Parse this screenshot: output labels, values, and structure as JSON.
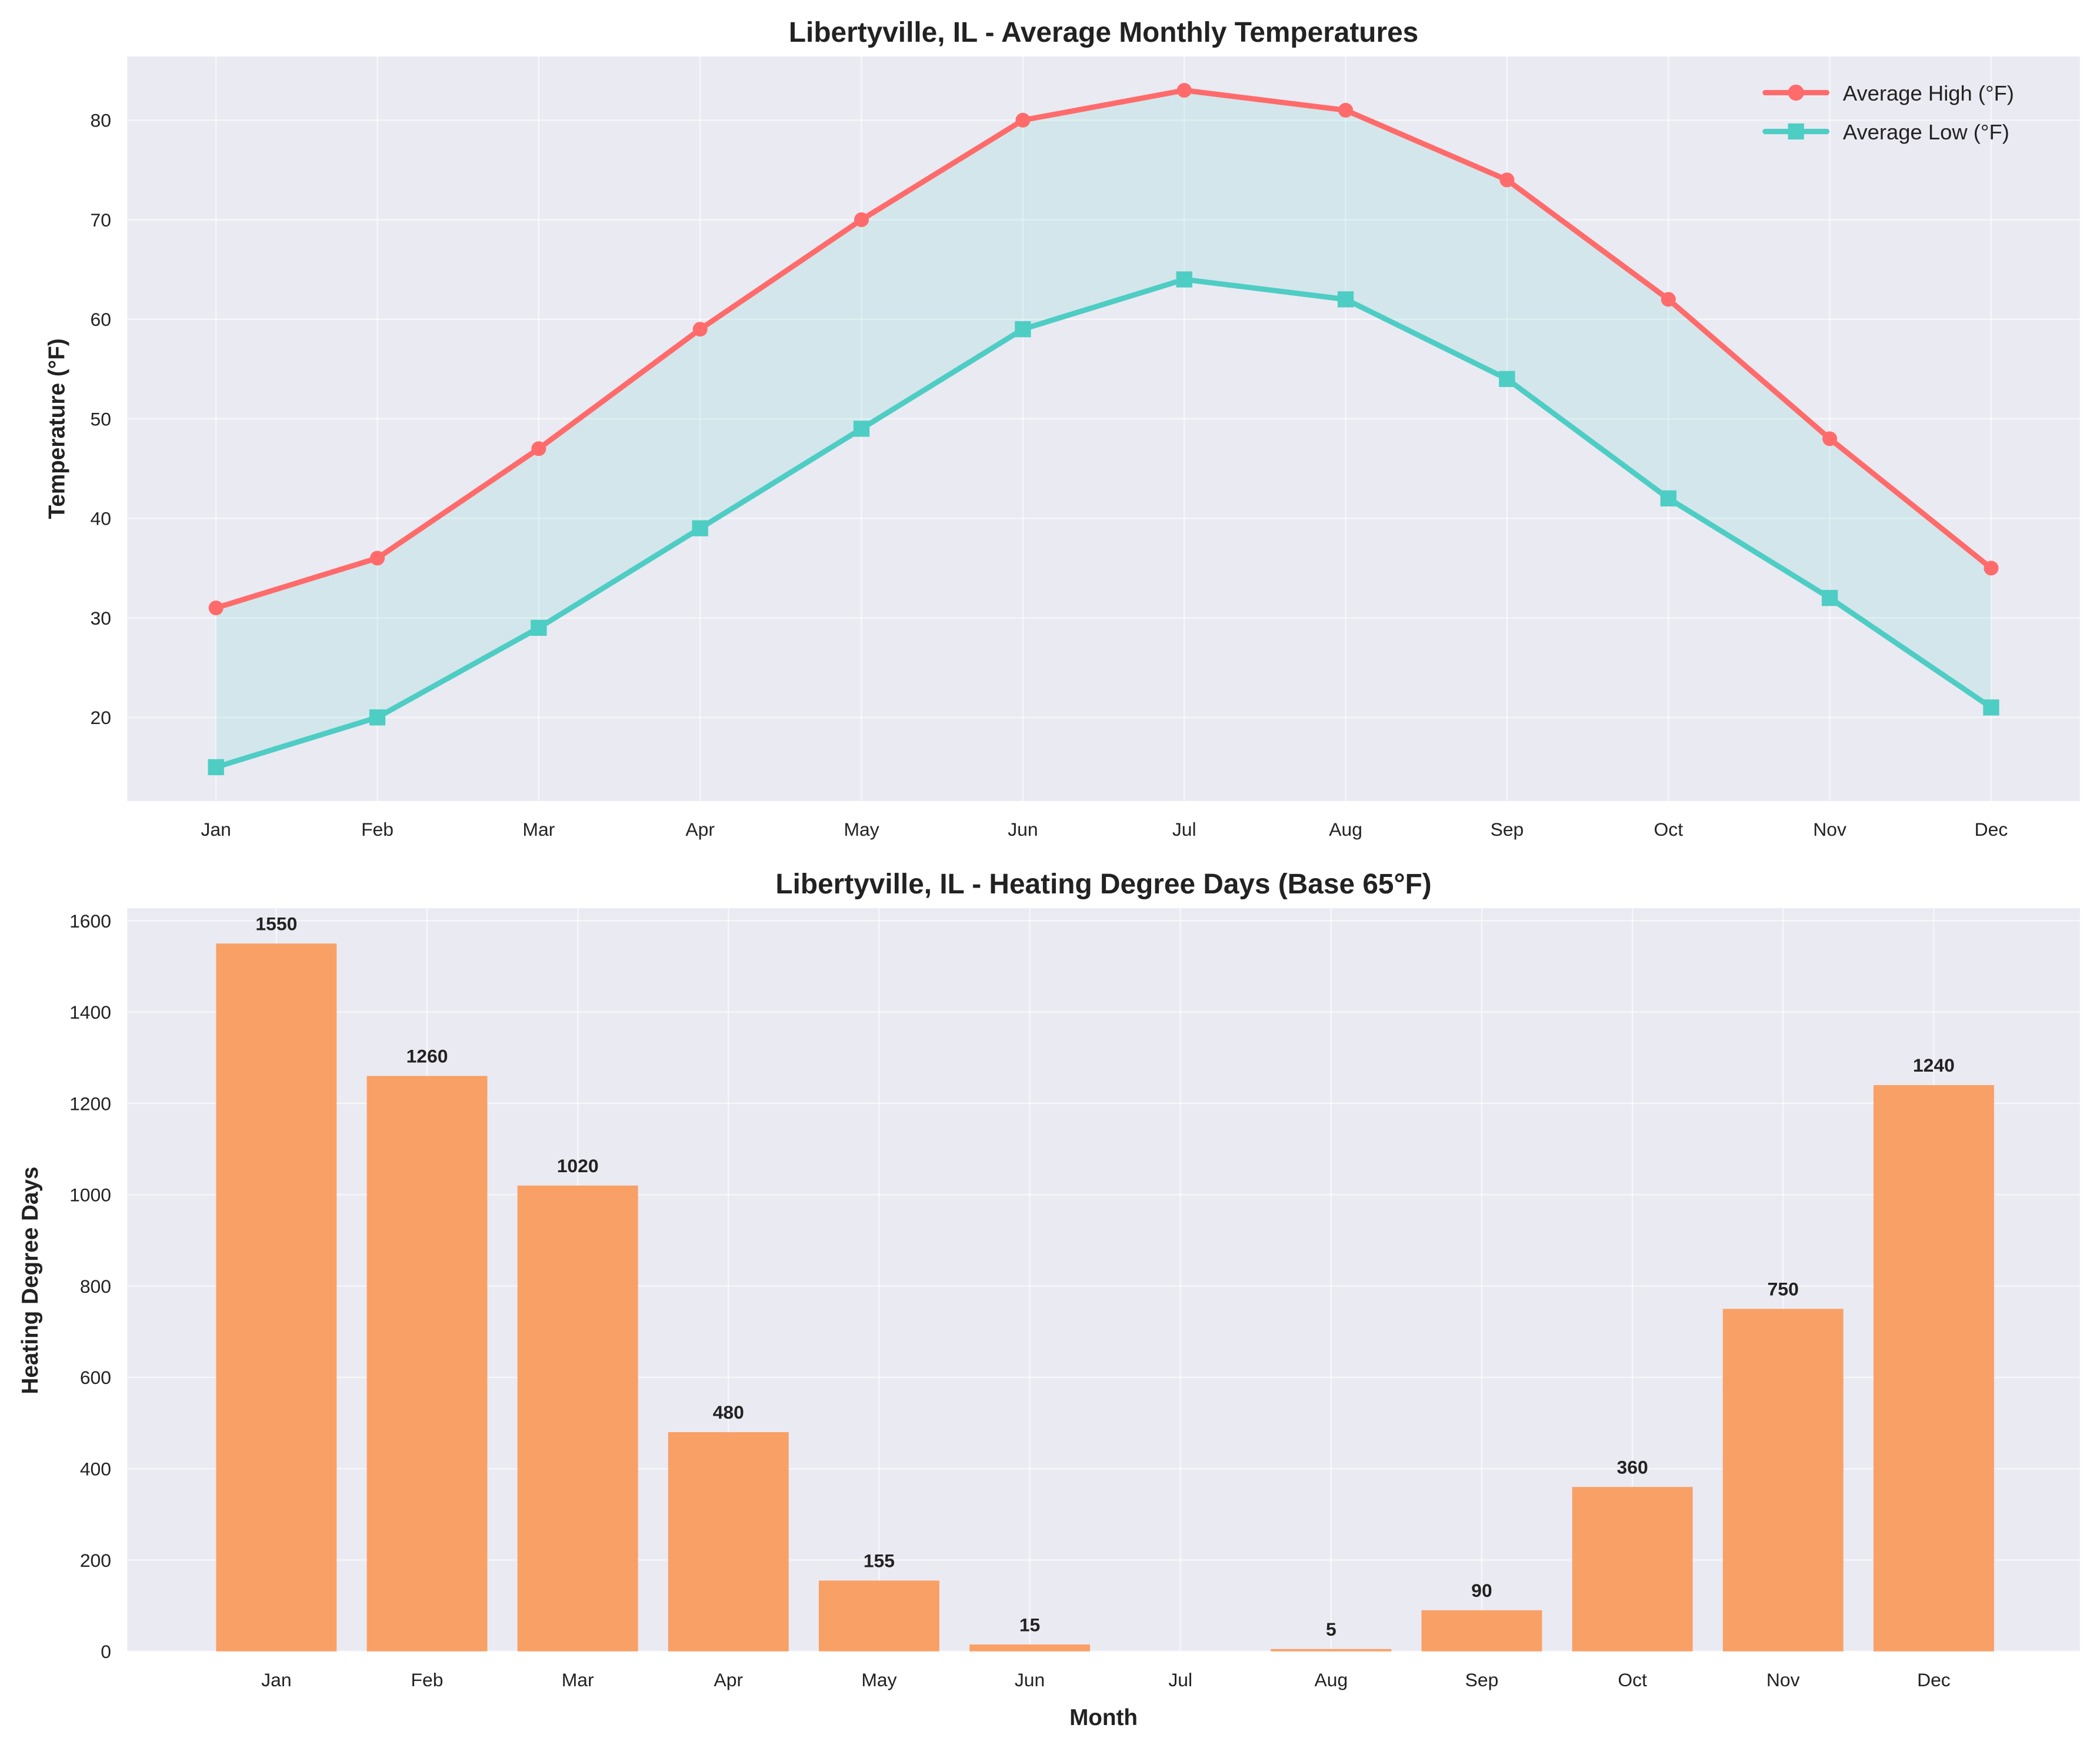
{
  "chart_data": [
    {
      "type": "line",
      "title": "Libertyville, IL - Average Monthly Temperatures",
      "xlabel": "",
      "ylabel": "Temperature (°F)",
      "categories": [
        "Jan",
        "Feb",
        "Mar",
        "Apr",
        "May",
        "Jun",
        "Jul",
        "Aug",
        "Sep",
        "Oct",
        "Nov",
        "Dec"
      ],
      "series": [
        {
          "name": "Average High (°F)",
          "values": [
            31,
            36,
            47,
            59,
            70,
            80,
            83,
            81,
            74,
            62,
            48,
            35
          ],
          "color": "#ff6b6b",
          "marker": "circle"
        },
        {
          "name": "Average Low (°F)",
          "values": [
            15,
            20,
            29,
            39,
            49,
            59,
            64,
            62,
            54,
            42,
            32,
            21
          ],
          "color": "#4ecdc4",
          "marker": "square"
        }
      ],
      "fill_between": true,
      "yticks": [
        20,
        30,
        40,
        50,
        60,
        70,
        80
      ],
      "ylim": [
        11.6,
        86.4
      ],
      "grid": true,
      "legend": "top-right"
    },
    {
      "type": "bar",
      "title": "Libertyville, IL - Heating Degree Days (Base 65°F)",
      "xlabel": "Month",
      "ylabel": "Heating Degree Days",
      "categories": [
        "Jan",
        "Feb",
        "Mar",
        "Apr",
        "May",
        "Jun",
        "Jul",
        "Aug",
        "Sep",
        "Oct",
        "Nov",
        "Dec"
      ],
      "values": [
        1550,
        1260,
        1020,
        480,
        155,
        15,
        0,
        5,
        90,
        360,
        750,
        1240
      ],
      "data_labels": [
        "1550",
        "1260",
        "1020",
        "480",
        "155",
        "15",
        "",
        "5",
        "90",
        "360",
        "750",
        "1240"
      ],
      "color": "#f9a066",
      "yticks": [
        0,
        200,
        400,
        600,
        800,
        1000,
        1200,
        1400,
        1600
      ],
      "ylim": [
        0,
        1627.5
      ],
      "grid": true
    }
  ]
}
